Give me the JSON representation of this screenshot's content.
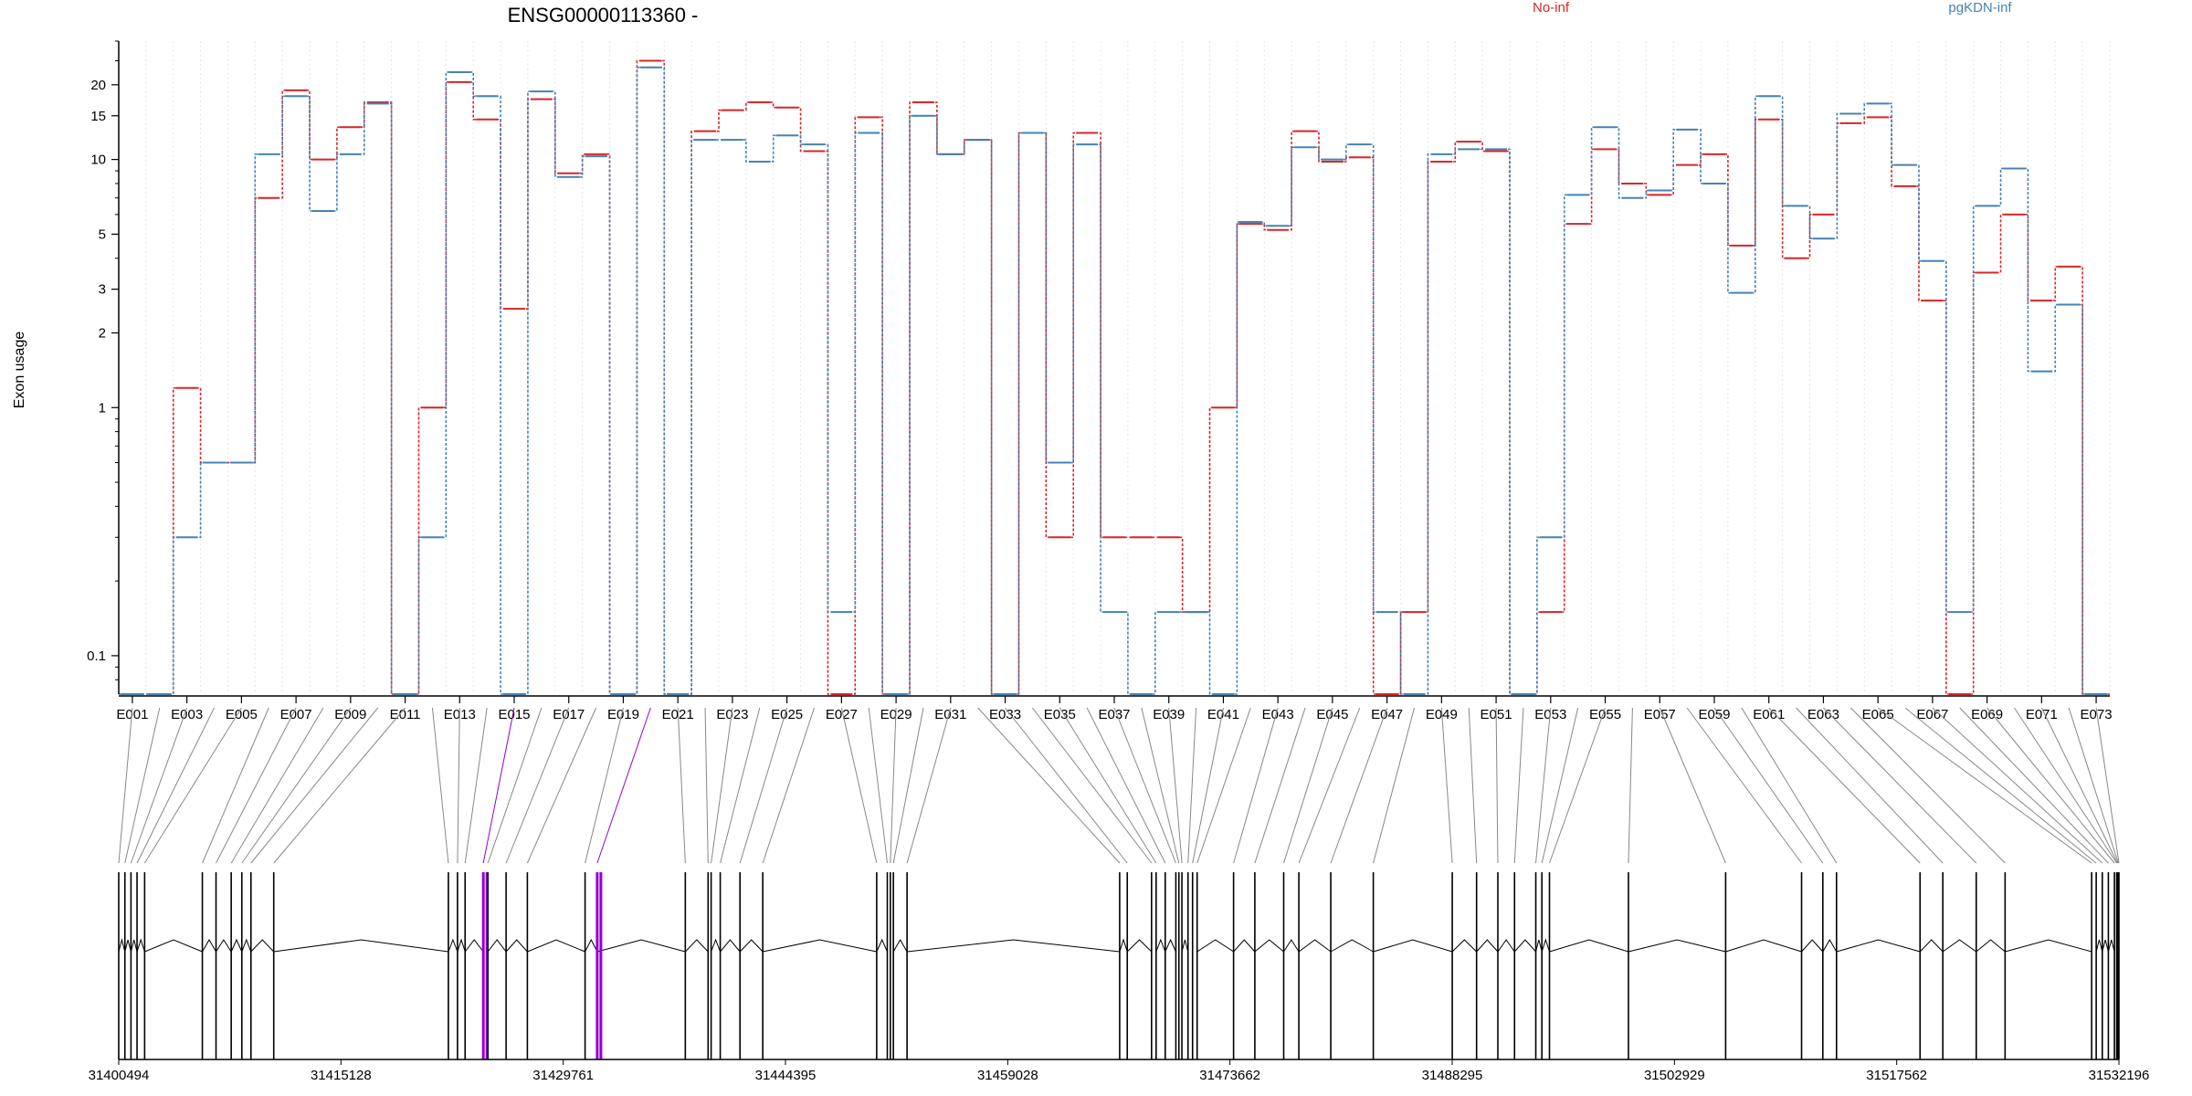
{
  "chart_data": {
    "type": "line",
    "title": "ENSG00000113360 -",
    "ylabel": "Exon usage",
    "yscale": "log",
    "ylim": [
      0.07,
      30
    ],
    "yticks": [
      0.1,
      1,
      2,
      3,
      5,
      10,
      15,
      20
    ],
    "ytick_labels": [
      "0.1",
      "1",
      "2",
      "3",
      "5",
      "10",
      "15",
      "20"
    ],
    "categories": [
      "E001",
      "E002",
      "E003",
      "E004",
      "E005",
      "E006",
      "E007",
      "E008",
      "E009",
      "E010",
      "E011",
      "E012",
      "E013",
      "E014",
      "E015",
      "E016",
      "E017",
      "E018",
      "E019",
      "E020",
      "E021",
      "E022",
      "E023",
      "E024",
      "E025",
      "E026",
      "E027",
      "E028",
      "E029",
      "E030",
      "E031",
      "E032",
      "E033",
      "E034",
      "E035",
      "E036",
      "E037",
      "E038",
      "E039",
      "E040",
      "E041",
      "E042",
      "E043",
      "E044",
      "E045",
      "E046",
      "E047",
      "E048",
      "E049",
      "E050",
      "E051",
      "E052",
      "E053",
      "E054",
      "E055",
      "E056",
      "E057",
      "E058",
      "E059",
      "E060",
      "E061",
      "E062",
      "E063",
      "E064",
      "E065",
      "E066",
      "E067",
      "E068",
      "E069",
      "E070",
      "E071",
      "E072",
      "E073"
    ],
    "xtick_labels": [
      "E001",
      "E003",
      "E005",
      "E007",
      "E009",
      "E011",
      "E013",
      "E015",
      "E017",
      "E019",
      "E021",
      "E023",
      "E025",
      "E027",
      "E029",
      "E031",
      "E033",
      "E035",
      "E037",
      "E039",
      "E041",
      "E043",
      "E045",
      "E047",
      "E049",
      "E051",
      "E053",
      "E055",
      "E057",
      "E059",
      "E061",
      "E063",
      "E065",
      "E067",
      "E069",
      "E071",
      "E073"
    ],
    "legend_position": "top",
    "series": [
      {
        "name": "No-inf",
        "color": "#d62728",
        "values": [
          0.07,
          0.07,
          1.2,
          0.6,
          0.6,
          7.0,
          19.0,
          10.0,
          13.5,
          17.0,
          0.07,
          1.0,
          20.5,
          14.5,
          2.5,
          17.5,
          8.8,
          10.5,
          0.07,
          25.0,
          0.07,
          13.0,
          15.8,
          17.0,
          16.2,
          10.8,
          0.07,
          14.8,
          0.07,
          17.0,
          10.5,
          12.0,
          0.07,
          12.8,
          0.3,
          12.8,
          0.3,
          0.3,
          0.3,
          0.15,
          1.0,
          5.5,
          5.2,
          13.0,
          9.8,
          10.2,
          0.07,
          0.15,
          9.8,
          11.8,
          10.8,
          0.07,
          0.15,
          5.5,
          11.0,
          8.0,
          7.2,
          9.5,
          10.5,
          4.5,
          14.5,
          4.0,
          6.0,
          14.0,
          14.8,
          7.8,
          2.7,
          0.07,
          3.5,
          6.0,
          2.7,
          3.7,
          0.07
        ]
      },
      {
        "name": "pgKDN-inf",
        "color": "#4682b4",
        "values": [
          0.07,
          0.07,
          0.3,
          0.6,
          0.6,
          10.5,
          18.0,
          6.2,
          10.5,
          16.8,
          0.07,
          0.3,
          22.5,
          18.0,
          0.07,
          18.8,
          8.5,
          10.3,
          0.07,
          23.5,
          0.07,
          12.0,
          12.0,
          9.8,
          12.5,
          11.5,
          0.15,
          12.8,
          0.07,
          15.0,
          10.5,
          12.0,
          0.07,
          12.8,
          0.6,
          11.5,
          0.15,
          0.07,
          0.15,
          0.15,
          0.07,
          5.6,
          5.4,
          11.2,
          10.0,
          11.5,
          0.15,
          0.07,
          10.5,
          11.0,
          11.0,
          0.07,
          0.3,
          7.2,
          13.5,
          7.0,
          7.5,
          13.2,
          8.0,
          2.9,
          18.0,
          6.5,
          4.8,
          15.3,
          16.8,
          9.5,
          3.9,
          0.15,
          6.5,
          9.2,
          1.4,
          2.6,
          0.07
        ]
      }
    ]
  },
  "gene_model": {
    "coordinate_labels": [
      "31400494",
      "31415128",
      "31429761",
      "31444395",
      "31459028",
      "31473662",
      "31488295",
      "31502929",
      "31517562",
      "31532196"
    ],
    "coordinate_values": [
      31400494,
      31415128,
      31429761,
      31444395,
      31459028,
      31473662,
      31488295,
      31502929,
      31517562,
      31532196
    ],
    "genomic_range": [
      31400494,
      31532196
    ],
    "exon_color": "#000000",
    "highlight_color": "#9400d3",
    "highlighted_exons": [
      "E015",
      "E020"
    ],
    "exon_starts": [
      31400494,
      31400900,
      31401300,
      31401700,
      31402200,
      31406000,
      31406900,
      31407900,
      31408600,
      31409200,
      31410700,
      31422200,
      31422800,
      31423300,
      31424500,
      31424800,
      31426000,
      31427400,
      31431200,
      31432000,
      31437800,
      31439300,
      31439500,
      31440100,
      31441400,
      31442900,
      31450400,
      31451100,
      31451300,
      31451500,
      31452400,
      31466400,
      31466900,
      31468500,
      31468800,
      31469400,
      31470100,
      31470300,
      31470500,
      31470900,
      31471200,
      31471500,
      31473900,
      31475300,
      31477200,
      31478200,
      31480300,
      31483100,
      31488300,
      31489900,
      31491300,
      31492400,
      31493800,
      31494200,
      31494700,
      31499900,
      31506300,
      31511300,
      31512700,
      31513600,
      31519100,
      31520600,
      31522800,
      31524700,
      31530400,
      31530700,
      31531100,
      31531500,
      31531900,
      31532050,
      31532100,
      31532150,
      31532196
    ]
  },
  "legend": {
    "no_inf": "No-inf",
    "pgkdn_inf": "pgKDN-inf"
  }
}
